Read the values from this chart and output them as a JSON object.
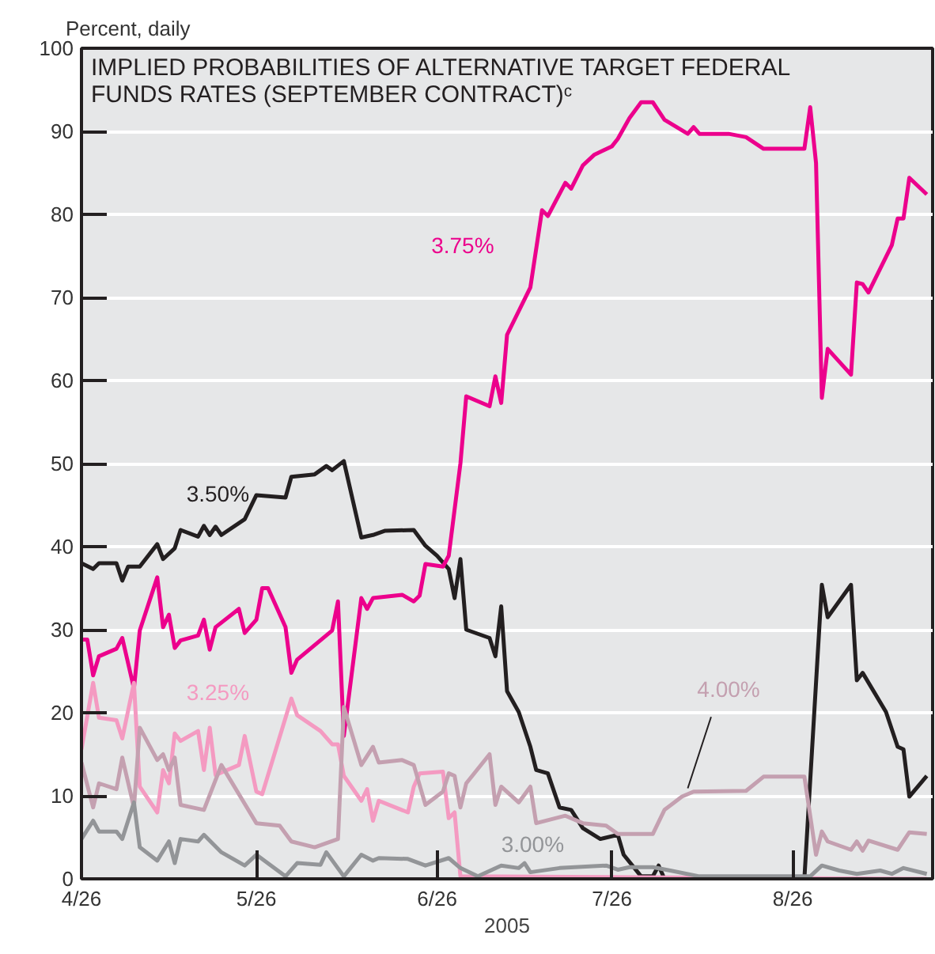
{
  "chart_data": {
    "type": "line",
    "title": "IMPLIED PROBABILITIES OF ALTERNATIVE TARGET FEDERAL\nFUNDS RATES (SEPTEMBER CONTRACT)ᶜ",
    "ylabel": "Percent, daily",
    "xlabel": "2005",
    "xlim": [
      "2005-04-26",
      "2005-09-19"
    ],
    "xticks": [
      {
        "value": "2005-04-26",
        "label": "4/26"
      },
      {
        "value": "2005-05-26",
        "label": "5/26"
      },
      {
        "value": "2005-06-26",
        "label": "6/26"
      },
      {
        "value": "2005-07-26",
        "label": "7/26"
      },
      {
        "value": "2005-08-26",
        "label": "8/26"
      }
    ],
    "ylim": [
      0,
      100
    ],
    "yticks": [
      0,
      10,
      20,
      30,
      40,
      50,
      60,
      70,
      80,
      90,
      100
    ],
    "grid": "y",
    "marker": "none",
    "line_style": "solid",
    "series": [
      {
        "name": "3.50%",
        "color": "#231f20",
        "x": [
          "2005-04-26",
          "2005-04-28",
          "2005-04-29",
          "2005-05-02",
          "2005-05-03",
          "2005-05-04",
          "2005-05-06",
          "2005-05-09",
          "2005-05-10",
          "2005-05-12",
          "2005-05-13",
          "2005-05-16",
          "2005-05-17",
          "2005-05-18",
          "2005-05-19",
          "2005-05-20",
          "2005-05-24",
          "2005-05-26",
          "2005-05-31",
          "2005-06-01",
          "2005-06-05",
          "2005-06-07",
          "2005-06-08",
          "2005-06-10",
          "2005-06-13",
          "2005-06-15",
          "2005-06-17",
          "2005-06-22",
          "2005-06-24",
          "2005-06-26",
          "2005-06-28",
          "2005-06-29",
          "2005-06-30",
          "2005-07-01",
          "2005-07-05",
          "2005-07-06",
          "2005-07-07",
          "2005-07-08",
          "2005-07-10",
          "2005-07-12",
          "2005-07-13",
          "2005-07-15",
          "2005-07-17",
          "2005-07-19",
          "2005-07-21",
          "2005-07-24",
          "2005-07-27",
          "2005-07-28",
          "2005-07-31",
          "2005-08-02",
          "2005-08-03",
          "2005-08-04",
          "2005-08-28",
          "2005-08-31",
          "2005-09-01",
          "2005-09-05",
          "2005-09-06",
          "2005-09-07",
          "2005-09-11",
          "2005-09-13",
          "2005-09-14",
          "2005-09-15",
          "2005-09-18"
        ],
        "values": [
          38,
          37.3,
          38,
          38,
          35.9,
          37.6,
          37.6,
          40.3,
          38.5,
          39.8,
          42,
          41.2,
          42.5,
          41.4,
          42.4,
          41.4,
          43.3,
          46.2,
          45.9,
          48.4,
          48.7,
          49.7,
          49.2,
          50.3,
          41.1,
          41.4,
          41.9,
          42,
          40.1,
          38.9,
          37.3,
          33.8,
          38.5,
          30,
          29,
          26.8,
          32.8,
          22.6,
          20.1,
          15.9,
          13.1,
          12.7,
          8.6,
          8.3,
          6.1,
          4.8,
          5.3,
          2.9,
          0.3,
          0.3,
          1.6,
          0,
          0,
          35.4,
          31.5,
          35.4,
          23.9,
          24.8,
          20.1,
          15.9,
          15.6,
          9.9,
          12.4
        ]
      },
      {
        "name": "3.75%",
        "color": "#ec008c",
        "x": [
          "2005-04-26",
          "2005-04-27",
          "2005-04-28",
          "2005-04-29",
          "2005-05-02",
          "2005-05-03",
          "2005-05-05",
          "2005-05-06",
          "2005-05-09",
          "2005-05-10",
          "2005-05-11",
          "2005-05-12",
          "2005-05-13",
          "2005-05-16",
          "2005-05-17",
          "2005-05-18",
          "2005-05-19",
          "2005-05-23",
          "2005-05-24",
          "2005-05-26",
          "2005-05-27",
          "2005-05-28",
          "2005-05-31",
          "2005-06-01",
          "2005-06-02",
          "2005-06-08",
          "2005-06-09",
          "2005-06-10",
          "2005-06-13",
          "2005-06-14",
          "2005-06-15",
          "2005-06-20",
          "2005-06-22",
          "2005-06-23",
          "2005-06-24",
          "2005-06-27",
          "2005-06-28",
          "2005-06-30",
          "2005-07-01",
          "2005-07-05",
          "2005-07-06",
          "2005-07-07",
          "2005-07-08",
          "2005-07-12",
          "2005-07-14",
          "2005-07-15",
          "2005-07-18",
          "2005-07-19",
          "2005-07-21",
          "2005-07-23",
          "2005-07-26",
          "2005-07-27",
          "2005-07-29",
          "2005-07-31",
          "2005-08-02",
          "2005-08-04",
          "2005-08-08",
          "2005-08-09",
          "2005-08-10",
          "2005-08-15",
          "2005-08-18",
          "2005-08-21",
          "2005-08-28",
          "2005-08-29",
          "2005-08-30",
          "2005-08-31",
          "2005-09-01",
          "2005-09-05",
          "2005-09-06",
          "2005-09-07",
          "2005-09-08",
          "2005-09-12",
          "2005-09-13",
          "2005-09-14",
          "2005-09-15",
          "2005-09-18"
        ],
        "values": [
          28.8,
          28.8,
          24.5,
          26.8,
          27.7,
          29,
          22.9,
          29.9,
          36.3,
          30.3,
          31.8,
          27.8,
          28.7,
          29.3,
          31.2,
          27.6,
          30.3,
          32.5,
          29.6,
          31.2,
          35,
          35,
          30.3,
          24.8,
          26.4,
          29.9,
          33.4,
          17.2,
          33.8,
          32.5,
          33.8,
          34.2,
          33.4,
          34.1,
          37.9,
          37.6,
          38.9,
          50,
          58.1,
          56.9,
          60.5,
          57.3,
          65.5,
          71.2,
          80.5,
          79.8,
          83.8,
          83.1,
          85.9,
          87.2,
          88.2,
          89.1,
          91.6,
          93.5,
          93.5,
          91.4,
          89.7,
          90.5,
          89.7,
          89.7,
          89.3,
          87.9,
          87.9,
          92.9,
          86.2,
          57.9,
          63.8,
          60.7,
          71.8,
          71.6,
          70.6,
          76.3,
          79.5,
          79.5,
          84.4,
          82.4
        ]
      },
      {
        "name": "3.25%",
        "color": "#f49ac1",
        "x": [
          "2005-04-26",
          "2005-04-28",
          "2005-04-29",
          "2005-05-02",
          "2005-05-03",
          "2005-05-05",
          "2005-05-06",
          "2005-05-09",
          "2005-05-10",
          "2005-05-11",
          "2005-05-12",
          "2005-05-13",
          "2005-05-16",
          "2005-05-17",
          "2005-05-18",
          "2005-05-19",
          "2005-05-23",
          "2005-05-24",
          "2005-05-26",
          "2005-05-27",
          "2005-06-01",
          "2005-06-02",
          "2005-06-06",
          "2005-06-08",
          "2005-06-09",
          "2005-06-10",
          "2005-06-13",
          "2005-06-14",
          "2005-06-15",
          "2005-06-16",
          "2005-06-21",
          "2005-06-22",
          "2005-06-23",
          "2005-06-27",
          "2005-06-28",
          "2005-06-29",
          "2005-06-30",
          "2005-09-18"
        ],
        "values": [
          15.6,
          23.6,
          19.4,
          19.1,
          16.9,
          23.6,
          11.1,
          8,
          13.1,
          11.5,
          17.5,
          16.6,
          17.8,
          13.1,
          18.2,
          12.5,
          13.7,
          17.2,
          10.5,
          10.2,
          21.7,
          19.7,
          17.8,
          16.2,
          16.2,
          12.4,
          9.4,
          10.8,
          7,
          9.4,
          8,
          11.1,
          12.7,
          12.9,
          7.3,
          8,
          0.3,
          0
        ]
      },
      {
        "name": "4.00%",
        "color": "#c4a0b0",
        "x": [
          "2005-04-26",
          "2005-04-28",
          "2005-04-29",
          "2005-05-02",
          "2005-05-03",
          "2005-05-05",
          "2005-05-06",
          "2005-05-09",
          "2005-05-10",
          "2005-05-11",
          "2005-05-12",
          "2005-05-13",
          "2005-05-17",
          "2005-05-20",
          "2005-05-26",
          "2005-05-30",
          "2005-06-01",
          "2005-06-05",
          "2005-06-09",
          "2005-06-10",
          "2005-06-13",
          "2005-06-15",
          "2005-06-16",
          "2005-06-20",
          "2005-06-22",
          "2005-06-24",
          "2005-06-27",
          "2005-06-28",
          "2005-06-29",
          "2005-06-30",
          "2005-07-01",
          "2005-07-05",
          "2005-07-06",
          "2005-07-07",
          "2005-07-10",
          "2005-07-12",
          "2005-07-13",
          "2005-07-18",
          "2005-07-21",
          "2005-07-25",
          "2005-07-27",
          "2005-08-02",
          "2005-08-04",
          "2005-08-07",
          "2005-08-09",
          "2005-08-18",
          "2005-08-21",
          "2005-08-28",
          "2005-08-30",
          "2005-08-31",
          "2005-09-01",
          "2005-09-05",
          "2005-09-06",
          "2005-09-07",
          "2005-09-08",
          "2005-09-13",
          "2005-09-15",
          "2005-09-18"
        ],
        "values": [
          14,
          8.6,
          11.5,
          10.8,
          14.6,
          8.6,
          18.2,
          14.3,
          15,
          13.1,
          14.6,
          8.9,
          8.3,
          13.7,
          6.7,
          6.4,
          4.5,
          3.8,
          4.8,
          20.7,
          13.7,
          15.9,
          14,
          14.3,
          13.7,
          8.9,
          10.5,
          12.7,
          12.4,
          8.6,
          11.5,
          15,
          8.9,
          11.1,
          9.2,
          11.1,
          6.7,
          7.6,
          6.7,
          6.4,
          5.4,
          5.4,
          8.3,
          9.9,
          10.5,
          10.6,
          12.3,
          12.3,
          2.9,
          5.7,
          4.5,
          3.5,
          4.5,
          3.4,
          4.6,
          3.5,
          5.6,
          5.4
        ]
      },
      {
        "name": "3.00%",
        "color": "#939598",
        "x": [
          "2005-04-26",
          "2005-04-28",
          "2005-04-29",
          "2005-05-02",
          "2005-05-03",
          "2005-05-05",
          "2005-05-06",
          "2005-05-09",
          "2005-05-11",
          "2005-05-12",
          "2005-05-13",
          "2005-05-16",
          "2005-05-17",
          "2005-05-20",
          "2005-05-24",
          "2005-05-26",
          "2005-05-31",
          "2005-06-02",
          "2005-06-06",
          "2005-06-07",
          "2005-06-10",
          "2005-06-13",
          "2005-06-15",
          "2005-06-16",
          "2005-06-21",
          "2005-06-24",
          "2005-06-28",
          "2005-06-30",
          "2005-07-03",
          "2005-07-07",
          "2005-07-10",
          "2005-07-11",
          "2005-07-12",
          "2005-07-17",
          "2005-07-25",
          "2005-07-27",
          "2005-07-29",
          "2005-08-02",
          "2005-08-05",
          "2005-08-10",
          "2005-08-29",
          "2005-08-31",
          "2005-09-03",
          "2005-09-06",
          "2005-09-10",
          "2005-09-12",
          "2005-09-14",
          "2005-09-18"
        ],
        "values": [
          4.8,
          7,
          5.7,
          5.7,
          4.8,
          9.2,
          3.8,
          2.2,
          4.5,
          1.9,
          4.8,
          4.5,
          5.3,
          3.2,
          1.6,
          2.9,
          0.3,
          1.9,
          1.7,
          3.2,
          0.3,
          2.9,
          2.2,
          2.5,
          2.4,
          1.6,
          2.5,
          1.3,
          0.3,
          1.6,
          1.3,
          1.9,
          0.8,
          1.3,
          1.6,
          1.1,
          1.4,
          1.4,
          1,
          0.3,
          0.3,
          1.6,
          1,
          0.6,
          1,
          0.6,
          1.3,
          0.6
        ]
      }
    ]
  }
}
